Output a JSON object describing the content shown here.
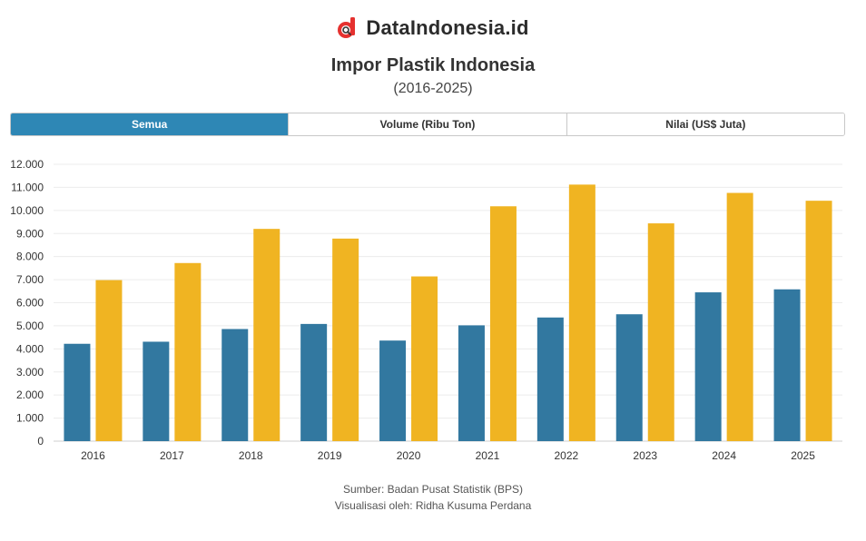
{
  "brand": {
    "name": "DataIndonesia.id",
    "logo_icon": "d-magnifier-logo-icon"
  },
  "header": {
    "title": "Impor Plastik Indonesia",
    "subtitle": "(2016-2025)"
  },
  "tabs": [
    {
      "label": "Semua",
      "active": true
    },
    {
      "label": "Volume (Ribu Ton)",
      "active": false
    },
    {
      "label": "Nilai (US$ Juta)",
      "active": false
    }
  ],
  "colors": {
    "volume": "#3278a0",
    "nilai": "#f0b422",
    "tab_active": "#2e87b5",
    "logo_red": "#e5312f"
  },
  "chart_data": {
    "type": "bar",
    "categories": [
      "2016",
      "2017",
      "2018",
      "2019",
      "2020",
      "2021",
      "2022",
      "2023",
      "2024",
      "2025"
    ],
    "series": [
      {
        "name": "Volume (Ribu Ton)",
        "values": [
          4220,
          4310,
          4860,
          5080,
          4360,
          5020,
          5360,
          5500,
          6450,
          6580
        ]
      },
      {
        "name": "Nilai (US$ Juta)",
        "values": [
          6980,
          7720,
          9200,
          8780,
          7140,
          10180,
          11120,
          9440,
          10760,
          10420
        ]
      }
    ],
    "yticks": [
      0,
      1000,
      2000,
      3000,
      4000,
      5000,
      6000,
      7000,
      8000,
      9000,
      10000,
      11000,
      12000
    ],
    "ytick_labels": [
      "0",
      "1.000",
      "2.000",
      "3.000",
      "4.000",
      "5.000",
      "6.000",
      "7.000",
      "8.000",
      "9.000",
      "10.000",
      "11.000",
      "12.000"
    ],
    "ylim": [
      0,
      12000
    ],
    "grid": true
  },
  "footer": {
    "source": "Sumber: Badan Pusat Statistik (BPS)",
    "credit": "Visualisasi oleh: Ridha Kusuma Perdana"
  }
}
